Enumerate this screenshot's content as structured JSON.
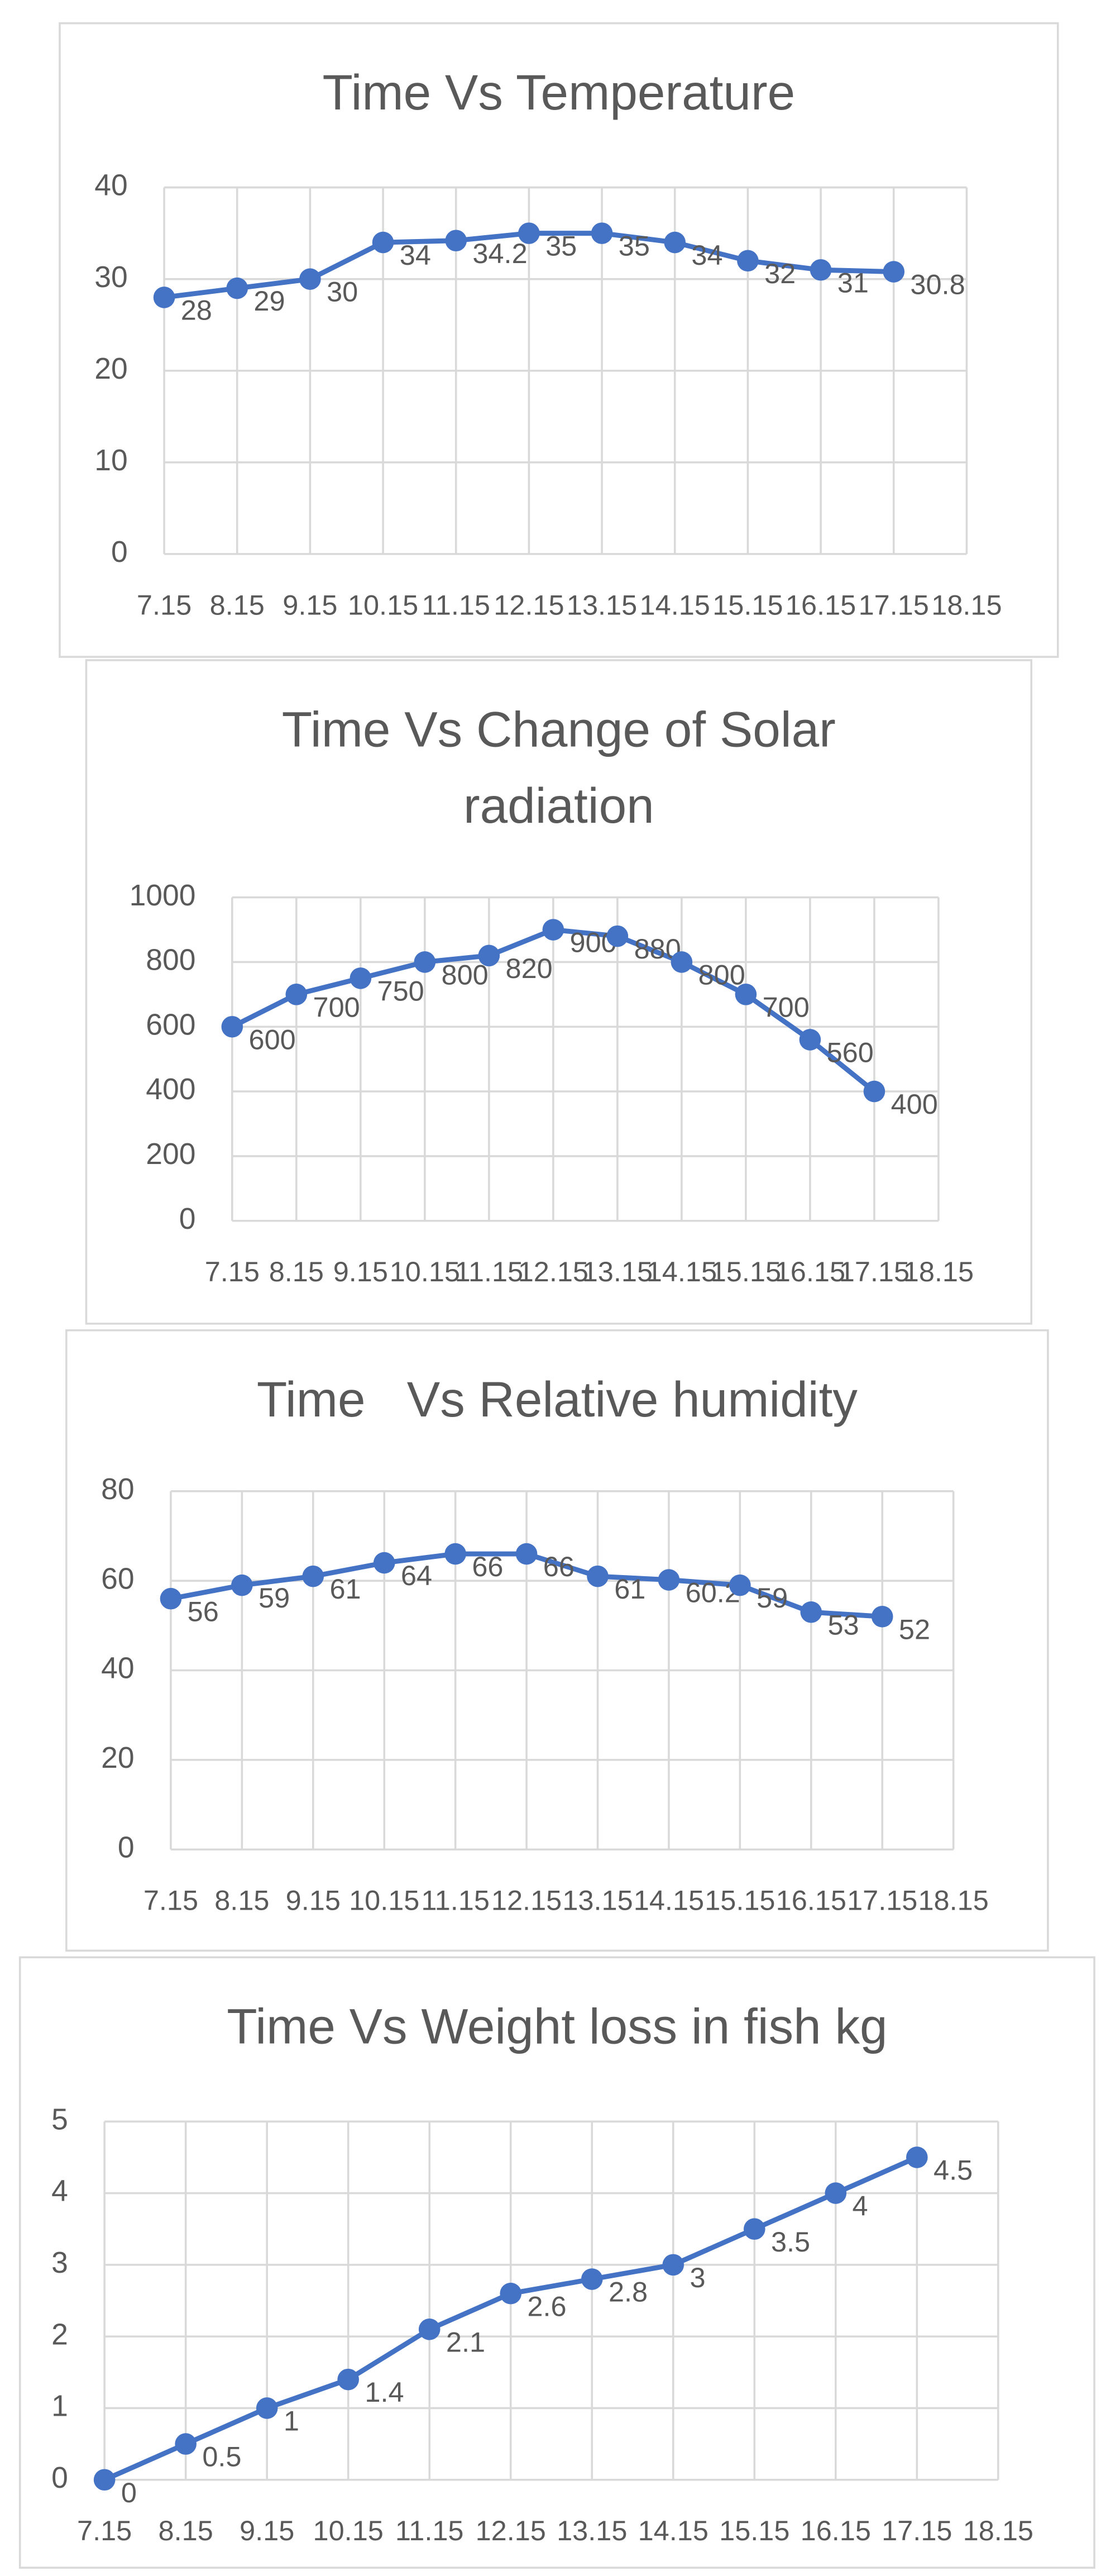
{
  "chart_data": [
    {
      "type": "line",
      "title": "Time Vs Temperature",
      "categories": [
        "7.15",
        "8.15",
        "9.15",
        "10.15",
        "11.15",
        "12.15",
        "13.15",
        "14.15",
        "15.15",
        "16.15",
        "17.15",
        "18.15"
      ],
      "values": [
        28,
        29,
        30,
        34,
        34.2,
        35,
        35,
        34,
        32,
        31,
        30.8,
        null
      ],
      "color": "#4472c4",
      "ylim": [
        0,
        40
      ],
      "yticks": [
        0,
        10,
        20,
        30,
        40
      ],
      "grid": true
    },
    {
      "type": "line",
      "title": "Time Vs Change of Solar radiation",
      "categories": [
        "7.15",
        "8.15",
        "9.15",
        "10.15",
        "11.15",
        "12.15",
        "13.15",
        "14.15",
        "15.15",
        "16.15",
        "17.15",
        "18.15"
      ],
      "values": [
        600,
        700,
        750,
        800,
        820,
        900,
        880,
        800,
        700,
        560,
        400,
        null
      ],
      "color": "#4472c4",
      "ylim": [
        0,
        1000
      ],
      "yticks": [
        0,
        200,
        400,
        600,
        800,
        1000
      ],
      "grid": true
    },
    {
      "type": "line",
      "title": "Time   Vs Relative humidity",
      "categories": [
        "7.15",
        "8.15",
        "9.15",
        "10.15",
        "11.15",
        "12.15",
        "13.15",
        "14.15",
        "15.15",
        "16.15",
        "17.15",
        "18.15"
      ],
      "values": [
        56,
        59,
        61,
        64,
        66,
        66,
        61,
        60.2,
        59,
        53,
        52,
        null
      ],
      "color": "#4472c4",
      "ylim": [
        0,
        80
      ],
      "yticks": [
        0,
        20,
        40,
        60,
        80
      ],
      "grid": true
    },
    {
      "type": "line",
      "title": "Time Vs Weight loss in fish kg",
      "categories": [
        "7.15",
        "8.15",
        "9.15",
        "10.15",
        "11.15",
        "12.15",
        "13.15",
        "14.15",
        "15.15",
        "16.15",
        "17.15",
        "18.15"
      ],
      "values": [
        0,
        0.5,
        1,
        1.4,
        2.1,
        2.6,
        2.8,
        3,
        3.5,
        4,
        4.5,
        null
      ],
      "color": "#4472c4",
      "ylim": [
        0,
        5
      ],
      "yticks": [
        0,
        1,
        2,
        3,
        4,
        5
      ],
      "grid": true
    }
  ]
}
